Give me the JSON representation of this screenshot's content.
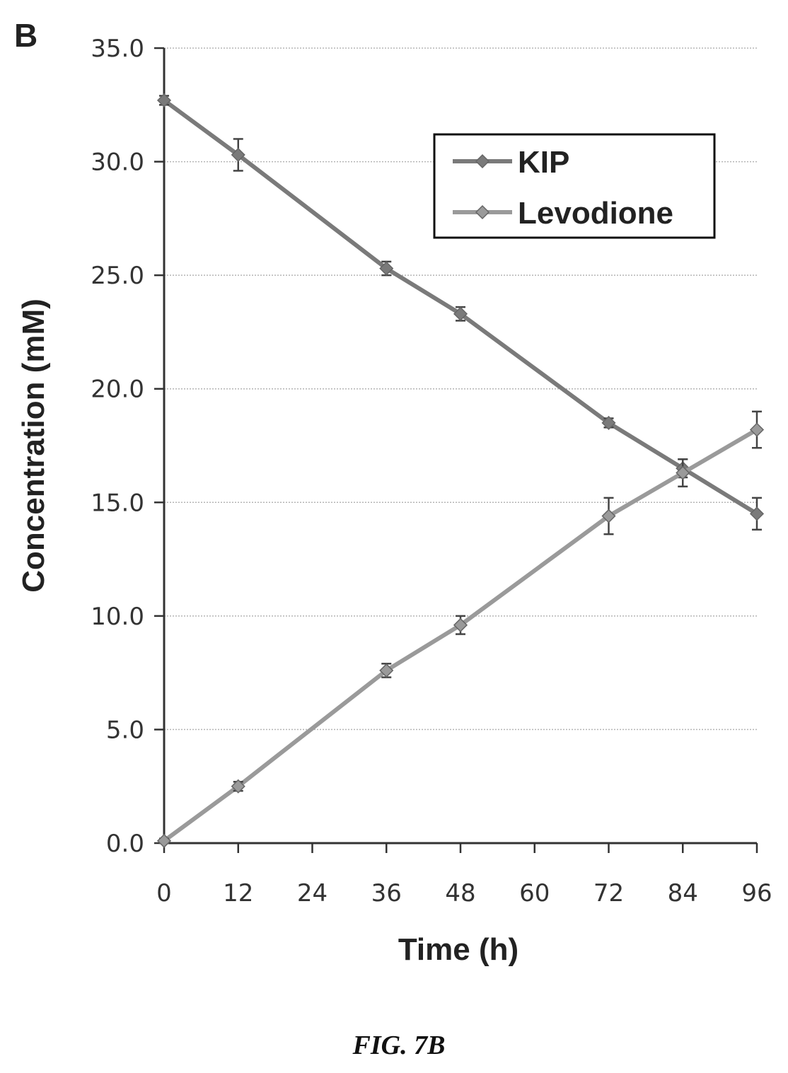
{
  "panel_label": "B",
  "caption": "FIG. 7B",
  "chart_data": {
    "type": "line",
    "xlabel": "Time (h)",
    "ylabel": "Concentration (mM)",
    "xlim": [
      0,
      96
    ],
    "ylim": [
      0,
      35
    ],
    "x_ticks": [
      0,
      12,
      24,
      36,
      48,
      60,
      72,
      84,
      96
    ],
    "y_ticks": [
      "0.0",
      "5.0",
      "10.0",
      "15.0",
      "20.0",
      "25.0",
      "30.0",
      "35.0"
    ],
    "grid": "horizontal",
    "legend_position": "top-right",
    "series": [
      {
        "name": "KIP",
        "color": "#7a7a7a",
        "x": [
          0,
          12,
          36,
          48,
          72,
          84,
          96
        ],
        "y": [
          32.7,
          30.3,
          25.3,
          23.3,
          18.5,
          16.5,
          14.5
        ],
        "error": [
          0.2,
          0.7,
          0.3,
          0.3,
          0.2,
          0.4,
          0.7
        ]
      },
      {
        "name": "Levodione",
        "color": "#9a9a9a",
        "x": [
          0,
          12,
          36,
          48,
          72,
          84,
          96
        ],
        "y": [
          0.1,
          2.5,
          7.6,
          9.6,
          14.4,
          16.3,
          18.2
        ],
        "error": [
          0.1,
          0.2,
          0.3,
          0.4,
          0.8,
          0.6,
          0.8
        ]
      }
    ]
  }
}
